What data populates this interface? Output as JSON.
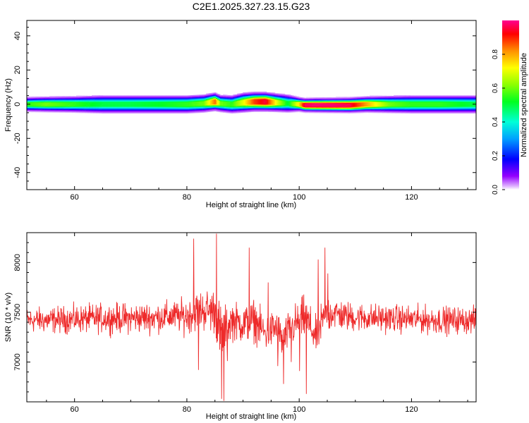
{
  "title": "C2E1.2025.327.23.15.G23",
  "colors": {
    "snr_line": "#ee2a2a",
    "frame": "#000000"
  },
  "chart_data": [
    {
      "type": "heatmap",
      "title": "C2E1.2025.327.23.15.G23",
      "xlabel": "Height of straight line (km)",
      "ylabel": "Frequency (Hz)",
      "xlim": [
        51.5,
        131.5
      ],
      "ylim": [
        -50,
        49
      ],
      "x_ticks": [
        "60",
        "80",
        "100",
        "120"
      ],
      "x_tick_values": [
        60,
        80,
        100,
        120
      ],
      "y_ticks": [
        "40",
        "20",
        "0",
        "-20",
        "-40"
      ],
      "y_tick_values": [
        40,
        20,
        0,
        -20,
        -40
      ],
      "colorbar": {
        "label": "Normalized spectral amplitude",
        "range": [
          0,
          1
        ],
        "ticks": [
          "0.0",
          "0.2",
          "0.4",
          "0.6",
          "0.8"
        ],
        "tick_values": [
          0.0,
          0.2,
          0.4,
          0.6,
          0.8
        ]
      },
      "ridge_center_hz": 0,
      "amplitude_profile": {
        "x": [
          51.5,
          55,
          60,
          65,
          70,
          75,
          80,
          83,
          85,
          86,
          88,
          90,
          92,
          94,
          96,
          98,
          100,
          101,
          103,
          106,
          109,
          112,
          116,
          120,
          125,
          131.5
        ],
        "amplitude": [
          0.55,
          0.6,
          0.55,
          0.5,
          0.5,
          0.52,
          0.55,
          0.6,
          0.85,
          0.6,
          0.55,
          0.7,
          0.88,
          0.95,
          0.7,
          0.5,
          0.75,
          0.97,
          0.98,
          0.98,
          0.96,
          0.8,
          0.6,
          0.55,
          0.55,
          0.5
        ],
        "freq_offset_hz": [
          0,
          0,
          0,
          0,
          0,
          0,
          0,
          0.5,
          1.5,
          0.5,
          0,
          1,
          1.5,
          1.5,
          1,
          0.5,
          0,
          -0.5,
          -0.5,
          -0.5,
          -0.5,
          0,
          0,
          0,
          0,
          0
        ],
        "width_hz": [
          3.2,
          3.4,
          3.6,
          4,
          4,
          4,
          4,
          4,
          4.2,
          3.8,
          4,
          4.5,
          4.5,
          4.5,
          4.2,
          4,
          3.2,
          3.2,
          3.3,
          3.4,
          3.5,
          3.6,
          3.8,
          4,
          4,
          4
        ]
      }
    },
    {
      "type": "line",
      "xlabel": "Height of straight line (km)",
      "ylabel": "SNR (10 * v/v)",
      "xlim": [
        51.5,
        131.5
      ],
      "ylim": [
        6600,
        8300
      ],
      "x_ticks": [
        "60",
        "80",
        "100",
        "120"
      ],
      "x_tick_values": [
        60,
        80,
        100,
        120
      ],
      "y_ticks": [
        "8000",
        "7500",
        "7000"
      ],
      "y_tick_values": [
        8000,
        7500,
        7000
      ],
      "envelope": {
        "x": [
          51.5,
          55,
          60,
          65,
          70,
          75,
          78,
          80,
          82,
          84,
          85,
          86,
          87,
          88,
          90,
          92,
          94,
          96,
          97,
          98,
          100,
          101,
          102,
          103,
          104,
          105,
          106,
          108,
          110,
          115,
          120,
          125,
          131.5
        ],
        "mean": [
          7420,
          7420,
          7430,
          7440,
          7440,
          7450,
          7460,
          7460,
          7520,
          7520,
          7520,
          7250,
          7350,
          7420,
          7380,
          7420,
          7280,
          7350,
          7200,
          7300,
          7420,
          7450,
          7350,
          7250,
          7380,
          7480,
          7500,
          7460,
          7450,
          7440,
          7430,
          7420,
          7420
        ],
        "spread": [
          180,
          190,
          200,
          210,
          220,
          220,
          230,
          260,
          280,
          320,
          330,
          500,
          300,
          280,
          280,
          300,
          260,
          300,
          260,
          280,
          300,
          320,
          300,
          280,
          300,
          320,
          250,
          220,
          210,
          200,
          200,
          200,
          190
        ]
      },
      "extremes": [
        {
          "x": 81.2,
          "y": 8240
        },
        {
          "x": 82.1,
          "y": 6920
        },
        {
          "x": 85.3,
          "y": 8290
        },
        {
          "x": 86.2,
          "y": 6630
        },
        {
          "x": 86.6,
          "y": 6610
        },
        {
          "x": 87.2,
          "y": 7010
        },
        {
          "x": 91.1,
          "y": 8150
        },
        {
          "x": 94.5,
          "y": 7800
        },
        {
          "x": 96.2,
          "y": 6960
        },
        {
          "x": 97.2,
          "y": 6780
        },
        {
          "x": 98.6,
          "y": 7000
        },
        {
          "x": 100.1,
          "y": 6910
        },
        {
          "x": 101.3,
          "y": 6680
        },
        {
          "x": 103.4,
          "y": 8030
        },
        {
          "x": 104.6,
          "y": 8150
        },
        {
          "x": 105.1,
          "y": 7890
        }
      ]
    }
  ]
}
